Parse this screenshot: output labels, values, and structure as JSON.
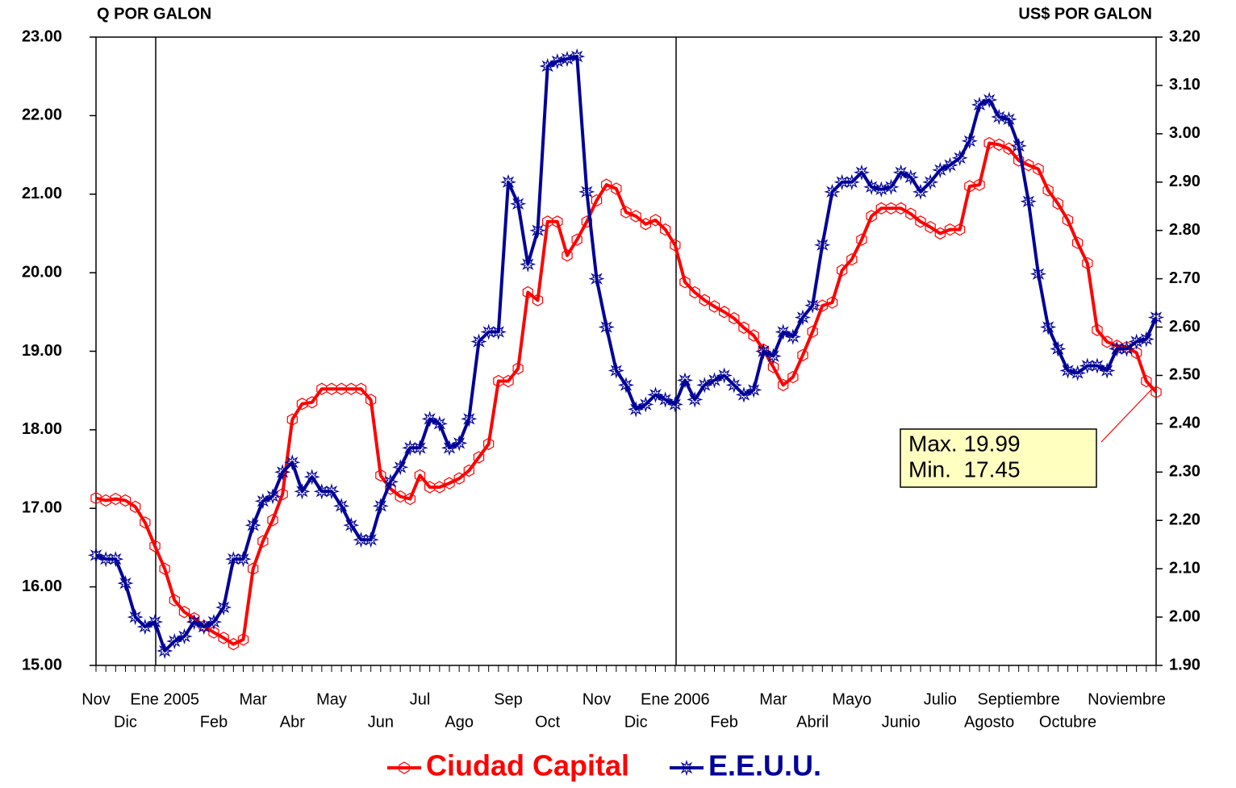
{
  "chart_data": {
    "type": "line",
    "y_label": "Q POR GALON",
    "y2_label": "US$ POR GALON",
    "categories": [
      "Nov",
      null,
      null,
      "Dic",
      null,
      null,
      null,
      "Ene 2005",
      null,
      null,
      null,
      null,
      "Feb",
      null,
      null,
      null,
      "Mar",
      null,
      null,
      null,
      "Abr",
      null,
      null,
      null,
      "May",
      null,
      null,
      null,
      null,
      "Jun",
      null,
      null,
      null,
      "Jul",
      null,
      null,
      null,
      "Ago",
      null,
      null,
      null,
      null,
      "Sep",
      null,
      null,
      null,
      "Oct",
      null,
      null,
      null,
      null,
      "Nov",
      null,
      null,
      null,
      "Dic",
      null,
      null,
      null,
      "Ene 2006",
      null,
      null,
      null,
      null,
      "Feb",
      null,
      null,
      null,
      null,
      "Mar",
      null,
      null,
      null,
      "Abril",
      null,
      null,
      null,
      "Mayo",
      null,
      null,
      null,
      null,
      "Junio",
      null,
      null,
      null,
      "Julio",
      null,
      null,
      null,
      null,
      "Agosto",
      null,
      null,
      "Septiembre",
      null,
      null,
      null,
      null,
      "Octubre",
      null,
      null,
      null,
      null,
      null,
      "Noviembre",
      null,
      null,
      null
    ],
    "series": [
      {
        "name": "Ciudad Capital",
        "color": "#ff0000",
        "values": [
          17.13,
          17.1,
          17.12,
          17.1,
          17.02,
          16.82,
          16.52,
          16.23,
          15.83,
          15.68,
          15.6,
          15.5,
          15.42,
          15.35,
          15.27,
          15.33,
          16.23,
          16.58,
          16.85,
          17.18,
          18.13,
          18.33,
          18.35,
          18.52,
          18.52,
          18.52,
          18.52,
          18.52,
          18.38,
          17.42,
          17.25,
          17.15,
          17.12,
          17.42,
          17.27,
          17.27,
          17.32,
          17.38,
          17.48,
          17.65,
          17.82,
          18.62,
          18.62,
          18.78,
          19.75,
          19.65,
          20.65,
          20.65,
          20.22,
          20.42,
          20.65,
          20.92,
          21.12,
          21.07,
          20.77,
          20.72,
          20.62,
          20.67,
          20.55,
          20.35,
          19.88,
          19.75,
          19.65,
          19.57,
          19.5,
          19.42,
          19.3,
          19.2,
          19.02,
          18.8,
          18.57,
          18.67,
          18.95,
          19.25,
          19.58,
          19.62,
          20.03,
          20.17,
          20.42,
          20.72,
          20.82,
          20.82,
          20.82,
          20.75,
          20.65,
          20.58,
          20.5,
          20.55,
          20.55,
          21.1,
          21.12,
          21.65,
          21.63,
          21.58,
          21.43,
          21.37,
          21.32,
          21.05,
          20.88,
          20.67,
          20.38,
          20.12,
          19.27,
          19.12,
          19.07,
          19.05,
          18.98,
          18.62,
          18.48
        ]
      },
      {
        "name": "E.E.U.U.",
        "color": "#000099",
        "axis": "y2",
        "values": [
          2.128,
          2.12,
          2.12,
          2.07,
          2.0,
          1.98,
          1.99,
          1.93,
          1.95,
          1.96,
          1.99,
          1.98,
          1.99,
          2.02,
          2.12,
          2.12,
          2.19,
          2.24,
          2.25,
          2.3,
          2.32,
          2.26,
          2.29,
          2.26,
          2.26,
          2.23,
          2.19,
          2.16,
          2.16,
          2.23,
          2.28,
          2.31,
          2.35,
          2.35,
          2.41,
          2.4,
          2.35,
          2.36,
          2.41,
          2.57,
          2.59,
          2.59,
          2.9,
          2.855,
          2.73,
          2.8,
          3.14,
          3.15,
          3.155,
          3.16,
          2.88,
          2.7,
          2.6,
          2.51,
          2.48,
          2.43,
          2.44,
          2.46,
          2.45,
          2.44,
          2.49,
          2.45,
          2.48,
          2.49,
          2.5,
          2.48,
          2.46,
          2.47,
          2.55,
          2.54,
          2.59,
          2.58,
          2.62,
          2.645,
          2.77,
          2.88,
          2.9,
          2.9,
          2.92,
          2.89,
          2.885,
          2.89,
          2.92,
          2.91,
          2.88,
          2.9,
          2.925,
          2.935,
          2.95,
          2.985,
          3.06,
          3.07,
          3.035,
          3.03,
          2.975,
          2.86,
          2.71,
          2.6,
          2.555,
          2.51,
          2.505,
          2.52,
          2.52,
          2.51,
          2.555,
          2.555,
          2.57,
          2.575,
          2.62
        ]
      }
    ],
    "ylim": [
      15,
      23
    ],
    "yticks": [
      {
        "value": 15,
        "label": "15.00"
      },
      {
        "value": 16,
        "label": "16.00"
      },
      {
        "value": 17,
        "label": "17.00"
      },
      {
        "value": 18,
        "label": "18.00"
      },
      {
        "value": 19,
        "label": "19.00"
      },
      {
        "value": 20,
        "label": "20.00"
      },
      {
        "value": 21,
        "label": "21.00"
      },
      {
        "value": 22,
        "label": "22.00"
      },
      {
        "value": 23,
        "label": "23.00"
      }
    ],
    "y2lim": [
      1.9,
      3.2
    ],
    "y2ticks": [
      {
        "value": 1.9,
        "label": "1.90"
      },
      {
        "value": 2.0,
        "label": "2.00"
      },
      {
        "value": 2.1,
        "label": "2.10"
      },
      {
        "value": 2.2,
        "label": "2.20"
      },
      {
        "value": 2.3,
        "label": "2.30"
      },
      {
        "value": 2.4,
        "label": "2.40"
      },
      {
        "value": 2.5,
        "label": "2.50"
      },
      {
        "value": 2.6,
        "label": "2.60"
      },
      {
        "value": 2.7,
        "label": "2.70"
      },
      {
        "value": 2.8,
        "label": "2.80"
      },
      {
        "value": 2.9,
        "label": "2.90"
      },
      {
        "value": 3.0,
        "label": "3.00"
      },
      {
        "value": 3.1,
        "label": "3.10"
      },
      {
        "value": 3.2,
        "label": "3.20"
      }
    ],
    "grid": false,
    "annotations": [
      "Max. 19.99",
      "Min.  17.45"
    ]
  }
}
